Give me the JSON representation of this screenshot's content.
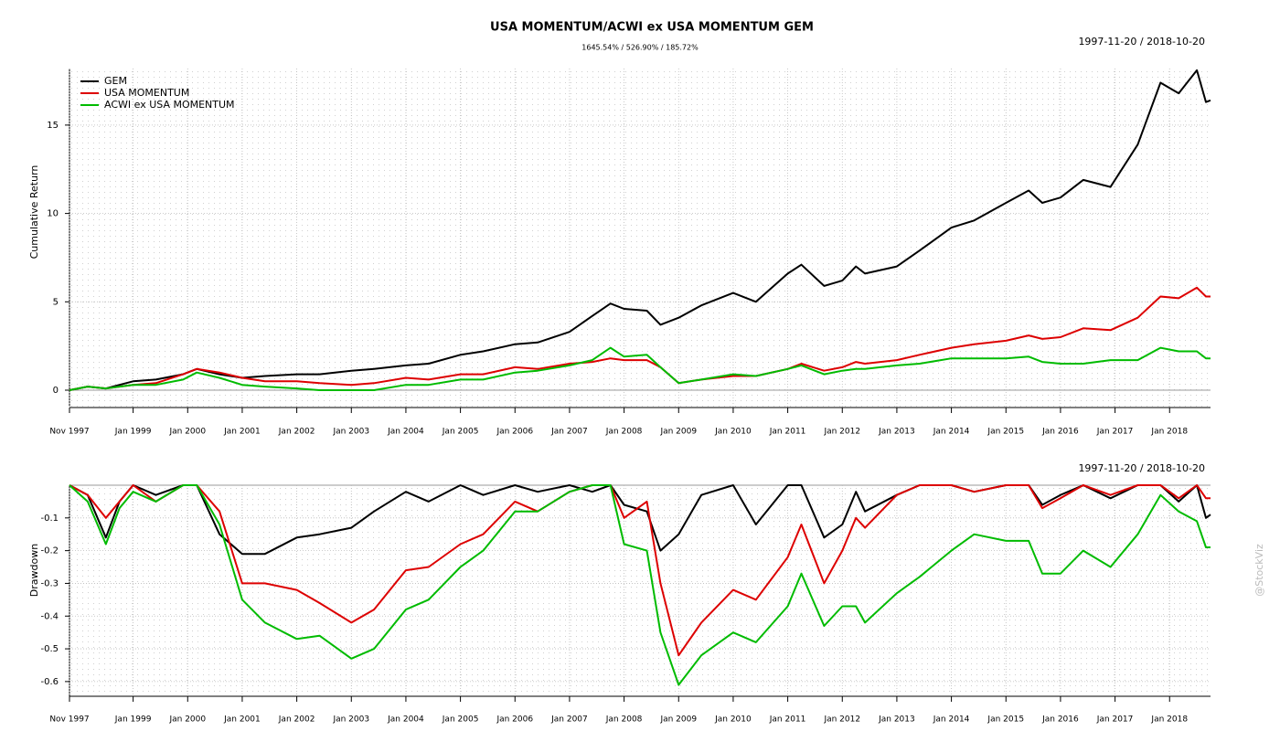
{
  "watermark": "@StockViz",
  "chart_data": [
    {
      "type": "line",
      "title": "USA MOMENTUM/ACWI ex USA MOMENTUM GEM",
      "subtitle": "1645.54% / 526.90% / 185.72%",
      "date_range": "1997-11-20 / 2018-10-20",
      "y_label": "Cumulative Return",
      "x": [
        "1997-11",
        "1998-03",
        "1998-07",
        "1998-10",
        "1999-01",
        "1999-06",
        "1999-12",
        "2000-03",
        "2000-08",
        "2001-01",
        "2001-06",
        "2002-01",
        "2002-06",
        "2003-01",
        "2003-06",
        "2004-01",
        "2004-06",
        "2005-01",
        "2005-06",
        "2006-01",
        "2006-06",
        "2007-01",
        "2007-06",
        "2007-10",
        "2008-01",
        "2008-06",
        "2008-09",
        "2009-01",
        "2009-06",
        "2010-01",
        "2010-06",
        "2011-01",
        "2011-04",
        "2011-09",
        "2012-01",
        "2012-04",
        "2012-06",
        "2013-01",
        "2013-06",
        "2014-01",
        "2014-06",
        "2015-01",
        "2015-06",
        "2015-09",
        "2016-01",
        "2016-06",
        "2016-12",
        "2017-06",
        "2017-11",
        "2018-03",
        "2018-07",
        "2018-09",
        "2018-10"
      ],
      "series": [
        {
          "name": "GEM",
          "color": "#000000",
          "values": [
            0,
            0.2,
            0.1,
            0.3,
            0.5,
            0.6,
            0.9,
            1.2,
            0.9,
            0.7,
            0.8,
            0.9,
            0.9,
            1.1,
            1.2,
            1.4,
            1.5,
            2.0,
            2.2,
            2.6,
            2.7,
            3.3,
            4.2,
            4.9,
            4.6,
            4.5,
            3.7,
            4.1,
            4.8,
            5.5,
            5.0,
            6.6,
            7.1,
            5.9,
            6.2,
            7.0,
            6.6,
            7.0,
            7.9,
            9.2,
            9.6,
            10.6,
            11.3,
            10.6,
            10.9,
            11.9,
            11.5,
            13.9,
            17.4,
            16.8,
            18.1,
            16.3,
            16.4
          ]
        },
        {
          "name": "USA MOMENTUM",
          "color": "#dd0000",
          "values": [
            0,
            0.2,
            0.1,
            0.2,
            0.3,
            0.4,
            0.9,
            1.2,
            1.0,
            0.7,
            0.5,
            0.5,
            0.4,
            0.3,
            0.4,
            0.7,
            0.6,
            0.9,
            0.9,
            1.3,
            1.2,
            1.5,
            1.6,
            1.8,
            1.7,
            1.7,
            1.3,
            0.4,
            0.6,
            0.8,
            0.8,
            1.2,
            1.5,
            1.1,
            1.3,
            1.6,
            1.5,
            1.7,
            2.0,
            2.4,
            2.6,
            2.8,
            3.1,
            2.9,
            3.0,
            3.5,
            3.4,
            4.1,
            5.3,
            5.2,
            5.8,
            5.3,
            5.3
          ]
        },
        {
          "name": "ACWI ex USA MOMENTUM",
          "color": "#00bb00",
          "values": [
            0,
            0.2,
            0.1,
            0.2,
            0.3,
            0.3,
            0.6,
            1.0,
            0.7,
            0.3,
            0.2,
            0.1,
            0.0,
            0.0,
            0.0,
            0.3,
            0.3,
            0.6,
            0.6,
            1.0,
            1.1,
            1.4,
            1.7,
            2.4,
            1.9,
            2.0,
            1.3,
            0.4,
            0.6,
            0.9,
            0.8,
            1.2,
            1.4,
            0.9,
            1.1,
            1.2,
            1.2,
            1.4,
            1.5,
            1.8,
            1.8,
            1.8,
            1.9,
            1.6,
            1.5,
            1.5,
            1.7,
            1.7,
            2.4,
            2.2,
            2.2,
            1.8,
            1.8
          ]
        }
      ],
      "xlim": [
        "1997-11",
        "2018-10"
      ],
      "xticks": [
        {
          "value": "1997-11",
          "label": "Nov 1997"
        },
        {
          "value": "1999-01",
          "label": "Jan 1999"
        },
        {
          "value": "2000-01",
          "label": "Jan 2000"
        },
        {
          "value": "2001-01",
          "label": "Jan 2001"
        },
        {
          "value": "2002-01",
          "label": "Jan 2002"
        },
        {
          "value": "2003-01",
          "label": "Jan 2003"
        },
        {
          "value": "2004-01",
          "label": "Jan 2004"
        },
        {
          "value": "2005-01",
          "label": "Jan 2005"
        },
        {
          "value": "2006-01",
          "label": "Jan 2006"
        },
        {
          "value": "2007-01",
          "label": "Jan 2007"
        },
        {
          "value": "2008-01",
          "label": "Jan 2008"
        },
        {
          "value": "2009-01",
          "label": "Jan 2009"
        },
        {
          "value": "2010-01",
          "label": "Jan 2010"
        },
        {
          "value": "2011-01",
          "label": "Jan 2011"
        },
        {
          "value": "2012-01",
          "label": "Jan 2012"
        },
        {
          "value": "2013-01",
          "label": "Jan 2013"
        },
        {
          "value": "2014-01",
          "label": "Jan 2014"
        },
        {
          "value": "2015-01",
          "label": "Jan 2015"
        },
        {
          "value": "2016-01",
          "label": "Jan 2016"
        },
        {
          "value": "2017-01",
          "label": "Jan 2017"
        },
        {
          "value": "2018-01",
          "label": "Jan 2018"
        }
      ],
      "ylim": [
        -0.93,
        18.2
      ],
      "yticks": [
        0,
        5,
        10,
        15
      ],
      "grid": true,
      "legend": "top-left"
    },
    {
      "type": "line",
      "date_range": "1997-11-20 / 2018-10-20",
      "y_label": "Drawdown",
      "x": [
        "1997-11",
        "1998-03",
        "1998-07",
        "1998-10",
        "1999-01",
        "1999-06",
        "1999-12",
        "2000-03",
        "2000-08",
        "2001-01",
        "2001-06",
        "2002-01",
        "2002-06",
        "2003-01",
        "2003-06",
        "2004-01",
        "2004-06",
        "2005-01",
        "2005-06",
        "2006-01",
        "2006-06",
        "2007-01",
        "2007-06",
        "2007-10",
        "2008-01",
        "2008-06",
        "2008-09",
        "2009-01",
        "2009-06",
        "2010-01",
        "2010-06",
        "2011-01",
        "2011-04",
        "2011-09",
        "2012-01",
        "2012-04",
        "2012-06",
        "2013-01",
        "2013-06",
        "2014-01",
        "2014-06",
        "2015-01",
        "2015-06",
        "2015-09",
        "2016-01",
        "2016-06",
        "2016-12",
        "2017-06",
        "2017-11",
        "2018-03",
        "2018-07",
        "2018-09",
        "2018-10"
      ],
      "series": [
        {
          "color": "#000000",
          "values": [
            0,
            -0.03,
            -0.16,
            -0.05,
            0,
            -0.03,
            0,
            0,
            -0.15,
            -0.21,
            -0.21,
            -0.16,
            -0.15,
            -0.13,
            -0.08,
            -0.02,
            -0.05,
            0,
            -0.03,
            0,
            -0.02,
            0,
            -0.02,
            0,
            -0.06,
            -0.08,
            -0.2,
            -0.15,
            -0.03,
            0,
            -0.12,
            0,
            0,
            -0.16,
            -0.12,
            -0.02,
            -0.08,
            -0.03,
            0,
            0,
            -0.02,
            0,
            0,
            -0.06,
            -0.03,
            0,
            -0.04,
            0,
            0,
            -0.05,
            0,
            -0.1,
            -0.09
          ]
        },
        {
          "color": "#dd0000",
          "values": [
            0,
            -0.03,
            -0.1,
            -0.05,
            0,
            -0.05,
            0,
            0,
            -0.08,
            -0.3,
            -0.3,
            -0.32,
            -0.36,
            -0.42,
            -0.38,
            -0.26,
            -0.25,
            -0.18,
            -0.15,
            -0.05,
            -0.08,
            -0.02,
            0,
            0,
            -0.1,
            -0.05,
            -0.3,
            -0.52,
            -0.42,
            -0.32,
            -0.35,
            -0.22,
            -0.12,
            -0.3,
            -0.2,
            -0.1,
            -0.13,
            -0.03,
            0,
            0,
            -0.02,
            0,
            0,
            -0.07,
            -0.04,
            0,
            -0.03,
            0,
            0,
            -0.04,
            0,
            -0.04,
            -0.04
          ]
        },
        {
          "color": "#00bb00",
          "values": [
            0,
            -0.05,
            -0.18,
            -0.07,
            -0.02,
            -0.05,
            0,
            0,
            -0.12,
            -0.35,
            -0.42,
            -0.47,
            -0.46,
            -0.53,
            -0.5,
            -0.38,
            -0.35,
            -0.25,
            -0.2,
            -0.08,
            -0.08,
            -0.02,
            0,
            0,
            -0.18,
            -0.2,
            -0.45,
            -0.61,
            -0.52,
            -0.45,
            -0.48,
            -0.37,
            -0.27,
            -0.43,
            -0.37,
            -0.37,
            -0.42,
            -0.33,
            -0.28,
            -0.2,
            -0.15,
            -0.17,
            -0.17,
            -0.27,
            -0.27,
            -0.2,
            -0.25,
            -0.15,
            -0.03,
            -0.08,
            -0.11,
            -0.19,
            -0.19
          ]
        }
      ],
      "xlim": [
        "1997-11",
        "2018-10"
      ],
      "xticks": [
        {
          "value": "1997-11",
          "label": "Nov 1997"
        },
        {
          "value": "1999-01",
          "label": "Jan 1999"
        },
        {
          "value": "2000-01",
          "label": "Jan 2000"
        },
        {
          "value": "2001-01",
          "label": "Jan 2001"
        },
        {
          "value": "2002-01",
          "label": "Jan 2002"
        },
        {
          "value": "2003-01",
          "label": "Jan 2003"
        },
        {
          "value": "2004-01",
          "label": "Jan 2004"
        },
        {
          "value": "2005-01",
          "label": "Jan 2005"
        },
        {
          "value": "2006-01",
          "label": "Jan 2006"
        },
        {
          "value": "2007-01",
          "label": "Jan 2007"
        },
        {
          "value": "2008-01",
          "label": "Jan 2008"
        },
        {
          "value": "2009-01",
          "label": "Jan 2009"
        },
        {
          "value": "2010-01",
          "label": "Jan 2010"
        },
        {
          "value": "2011-01",
          "label": "Jan 2011"
        },
        {
          "value": "2012-01",
          "label": "Jan 2012"
        },
        {
          "value": "2013-01",
          "label": "Jan 2013"
        },
        {
          "value": "2014-01",
          "label": "Jan 2014"
        },
        {
          "value": "2015-01",
          "label": "Jan 2015"
        },
        {
          "value": "2016-01",
          "label": "Jan 2016"
        },
        {
          "value": "2017-01",
          "label": "Jan 2017"
        },
        {
          "value": "2018-01",
          "label": "Jan 2018"
        }
      ],
      "ylim": [
        -0.645,
        0
      ],
      "yticks": [
        -0.6,
        -0.5,
        -0.4,
        -0.3,
        -0.2,
        -0.1
      ],
      "grid": true
    }
  ]
}
